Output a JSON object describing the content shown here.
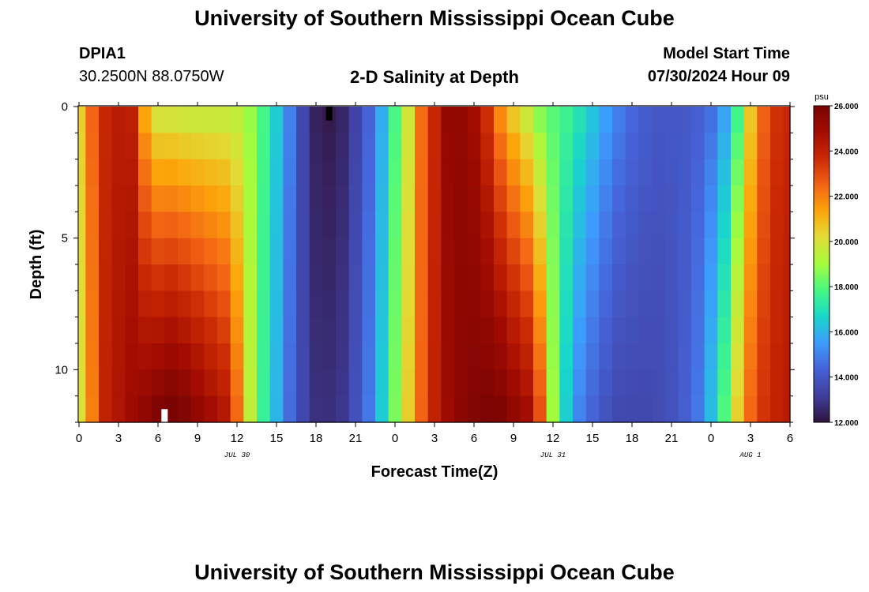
{
  "page": {
    "title_top": "University of Southern Mississippi Ocean Cube",
    "title_bottom": "University of Southern Mississippi Ocean Cube",
    "station_id": "DPIA1",
    "station_coords": "30.2500N  88.0750W",
    "plot_title": "2-D Salinity at Depth",
    "model_start_label": "Model Start Time",
    "model_start_value": "07/30/2024 Hour 09"
  },
  "colors": {
    "colormap": [
      "#30123b",
      "#3f3e9c",
      "#4662d7",
      "#3e9bfe",
      "#18d6cb",
      "#46f884",
      "#a4fc3c",
      "#e1dd37",
      "#fca50a",
      "#f36315",
      "#cb2a04",
      "#a30c01",
      "#7a0403"
    ]
  },
  "chart_data": {
    "type": "heatmap",
    "title": "2-D Salinity at Depth",
    "xlabel": "Forecast Time(Z)",
    "ylabel": "Depth (ft)",
    "x_tick_labels": [
      "0",
      "3",
      "6",
      "9",
      "12",
      "15",
      "18",
      "21",
      "0",
      "3",
      "6",
      "9",
      "12",
      "15",
      "18",
      "21",
      "0",
      "3",
      "6"
    ],
    "date_labels": [
      {
        "label": "JUL 30",
        "hour": 12
      },
      {
        "label": "JUL 31",
        "hour": 36
      },
      {
        "label": "AUG 1",
        "hour": 51
      }
    ],
    "y_tick_labels": [
      "0",
      "5",
      "10"
    ],
    "xlim": [
      0,
      54
    ],
    "ylim": [
      0,
      12
    ],
    "x_step_hours": 1,
    "depth_step_ft": 1,
    "colorbar": {
      "unit": "psu",
      "min": 12.0,
      "max": 26.0,
      "tick_labels": [
        "26.000",
        "24.000",
        "22.000",
        "20.000",
        "18.000",
        "16.000",
        "14.000",
        "12.000"
      ]
    },
    "markers": [
      {
        "hour": 19,
        "depth_from": 0,
        "depth_to": 0.5,
        "color": "#000000"
      },
      {
        "hour": 6.5,
        "depth_from": 11.5,
        "depth_to": 12,
        "color": "#ffffff"
      }
    ],
    "salinity_profiles": {
      "description": "surface and bottom salinity (psu) per forecast hour 0..54",
      "surface": [
        20.5,
        22.5,
        23.8,
        24.2,
        24.0,
        21.0,
        19.5,
        19.4,
        19.3,
        19.3,
        19.3,
        19.3,
        19.3,
        18.8,
        17.8,
        16.5,
        15.0,
        13.5,
        12.4,
        12.2,
        12.5,
        13.3,
        14.3,
        15.8,
        17.8,
        19.8,
        22.3,
        23.8,
        25.3,
        25.3,
        24.8,
        23.4,
        21.5,
        20.3,
        19.3,
        18.3,
        18.0,
        17.7,
        17.2,
        16.5,
        15.7,
        15.0,
        14.5,
        14.2,
        14.0,
        14.0,
        14.0,
        14.2,
        14.5,
        15.5,
        17.5,
        20.5,
        22.5,
        23.5,
        23.8
      ],
      "bottom": [
        20.0,
        22.0,
        24.0,
        24.5,
        25.0,
        25.5,
        26.0,
        26.3,
        26.0,
        25.5,
        25.0,
        24.5,
        22.5,
        19.5,
        17.5,
        16.0,
        14.5,
        13.5,
        12.8,
        12.8,
        13.0,
        13.8,
        14.8,
        16.5,
        18.5,
        20.5,
        22.5,
        24.0,
        25.0,
        25.5,
        25.8,
        26.0,
        26.0,
        25.5,
        25.0,
        23.0,
        19.0,
        16.5,
        15.0,
        14.3,
        13.8,
        13.5,
        13.5,
        13.5,
        13.6,
        13.8,
        14.2,
        14.8,
        16.2,
        18.0,
        20.5,
        22.5,
        23.5,
        24.0,
        24.3
      ]
    }
  }
}
